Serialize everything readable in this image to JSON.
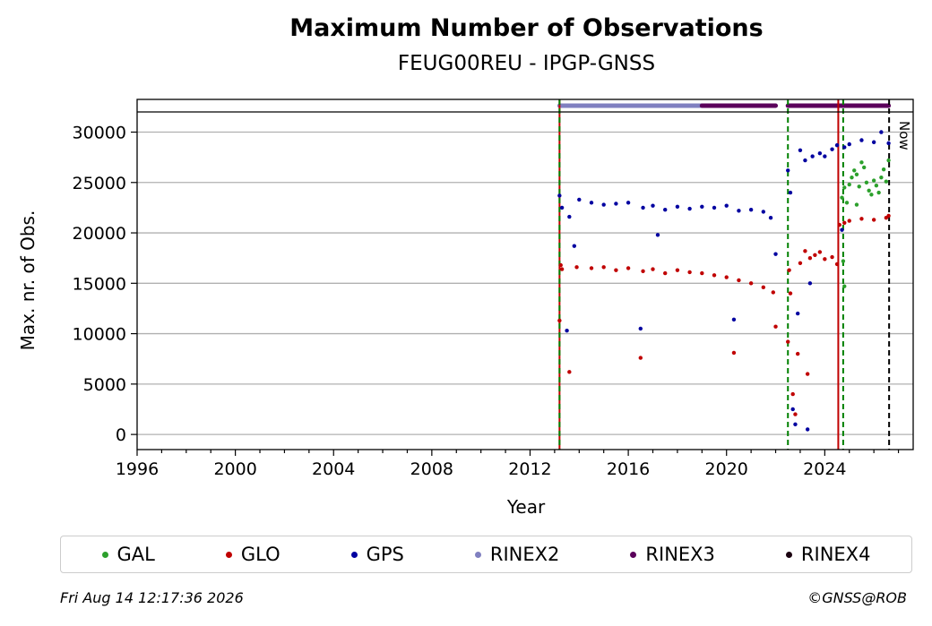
{
  "chart_data": {
    "type": "scatter",
    "title": "Maximum Number of Observations",
    "subtitle": "FEUG00REU - IPGP-GNSS",
    "xlabel": "Year",
    "ylabel": "Max. nr. of Obs.",
    "xlim": [
      1996,
      2027.6
    ],
    "ylim": [
      -1500,
      32000
    ],
    "x_ticks": [
      1996,
      2000,
      2004,
      2008,
      2012,
      2016,
      2020,
      2024
    ],
    "y_ticks": [
      0,
      5000,
      10000,
      15000,
      20000,
      25000,
      30000
    ],
    "grid": "horizontal",
    "series": [
      {
        "name": "GAL",
        "color": "#2ca02c",
        "points": [
          [
            2024.7,
            23500
          ],
          [
            2024.8,
            24500
          ],
          [
            2024.9,
            23000
          ],
          [
            2025.0,
            24800
          ],
          [
            2025.1,
            25500
          ],
          [
            2025.2,
            26200
          ],
          [
            2025.3,
            25800
          ],
          [
            2025.4,
            24600
          ],
          [
            2025.5,
            27000
          ],
          [
            2025.6,
            26500
          ],
          [
            2025.7,
            25000
          ],
          [
            2025.8,
            24200
          ],
          [
            2025.9,
            23800
          ],
          [
            2026.0,
            25200
          ],
          [
            2026.1,
            24700
          ],
          [
            2026.2,
            24000
          ],
          [
            2026.3,
            25500
          ],
          [
            2026.4,
            26300
          ],
          [
            2026.5,
            25100
          ],
          [
            2026.6,
            27200
          ],
          [
            2024.75,
            17200
          ],
          [
            2024.8,
            14700
          ],
          [
            2025.3,
            22800
          ]
        ]
      },
      {
        "name": "GLO",
        "color": "#c00000",
        "points": [
          [
            2013.2,
            11300
          ],
          [
            2013.25,
            16800
          ],
          [
            2013.3,
            16400
          ],
          [
            2013.6,
            6200
          ],
          [
            2013.9,
            16600
          ],
          [
            2014.5,
            16500
          ],
          [
            2015.0,
            16600
          ],
          [
            2015.5,
            16300
          ],
          [
            2016.0,
            16500
          ],
          [
            2016.5,
            7600
          ],
          [
            2016.6,
            16200
          ],
          [
            2017.0,
            16400
          ],
          [
            2017.5,
            16000
          ],
          [
            2018.0,
            16300
          ],
          [
            2018.5,
            16100
          ],
          [
            2019.0,
            16000
          ],
          [
            2019.5,
            15800
          ],
          [
            2020.0,
            15600
          ],
          [
            2020.3,
            8100
          ],
          [
            2020.5,
            15300
          ],
          [
            2021.0,
            15000
          ],
          [
            2021.5,
            14600
          ],
          [
            2021.9,
            14100
          ],
          [
            2022.0,
            10700
          ],
          [
            2022.5,
            9200
          ],
          [
            2022.55,
            16300
          ],
          [
            2022.6,
            14000
          ],
          [
            2022.7,
            4000
          ],
          [
            2022.8,
            2000
          ],
          [
            2022.9,
            8000
          ],
          [
            2023.0,
            17000
          ],
          [
            2023.2,
            18200
          ],
          [
            2023.3,
            6000
          ],
          [
            2023.4,
            17500
          ],
          [
            2023.6,
            17800
          ],
          [
            2023.8,
            18100
          ],
          [
            2024.0,
            17400
          ],
          [
            2024.3,
            17600
          ],
          [
            2024.5,
            16900
          ],
          [
            2024.6,
            20800
          ],
          [
            2024.8,
            21000
          ],
          [
            2025.0,
            21200
          ],
          [
            2025.5,
            21400
          ],
          [
            2026.0,
            21300
          ],
          [
            2026.5,
            21500
          ],
          [
            2026.6,
            21700
          ]
        ]
      },
      {
        "name": "GPS",
        "color": "#0000a0",
        "points": [
          [
            2013.2,
            23700
          ],
          [
            2013.3,
            22500
          ],
          [
            2013.5,
            10300
          ],
          [
            2013.6,
            21600
          ],
          [
            2013.8,
            18700
          ],
          [
            2014.0,
            23300
          ],
          [
            2014.5,
            23000
          ],
          [
            2015.0,
            22800
          ],
          [
            2015.5,
            22900
          ],
          [
            2016.0,
            23000
          ],
          [
            2016.5,
            10500
          ],
          [
            2016.6,
            22500
          ],
          [
            2017.0,
            22700
          ],
          [
            2017.2,
            19800
          ],
          [
            2017.5,
            22300
          ],
          [
            2018.0,
            22600
          ],
          [
            2018.5,
            22400
          ],
          [
            2019.0,
            22600
          ],
          [
            2019.5,
            22500
          ],
          [
            2020.0,
            22700
          ],
          [
            2020.3,
            11400
          ],
          [
            2020.5,
            22200
          ],
          [
            2021.0,
            22300
          ],
          [
            2021.5,
            22100
          ],
          [
            2021.8,
            21500
          ],
          [
            2022.0,
            17900
          ],
          [
            2022.5,
            26200
          ],
          [
            2022.6,
            24000
          ],
          [
            2022.7,
            2500
          ],
          [
            2022.8,
            1000
          ],
          [
            2022.9,
            12000
          ],
          [
            2023.0,
            28200
          ],
          [
            2023.2,
            27200
          ],
          [
            2023.3,
            500
          ],
          [
            2023.4,
            15000
          ],
          [
            2023.5,
            27600
          ],
          [
            2023.8,
            27900
          ],
          [
            2024.0,
            27600
          ],
          [
            2024.3,
            28300
          ],
          [
            2024.5,
            28700
          ],
          [
            2024.7,
            20300
          ],
          [
            2024.8,
            28500
          ],
          [
            2025.0,
            28800
          ],
          [
            2025.5,
            29200
          ],
          [
            2026.0,
            29000
          ],
          [
            2026.3,
            30000
          ],
          [
            2026.6,
            28900
          ]
        ]
      }
    ],
    "rinex_bars": [
      {
        "name": "RINEX2",
        "color": "#8080c0",
        "from": 2013.2,
        "to": 2019.0
      },
      {
        "name": "RINEX3",
        "color": "#5b005b",
        "from": 2019.0,
        "to": 2022.0
      },
      {
        "name": "RINEX3",
        "color": "#5b005b",
        "from": 2022.5,
        "to": 2026.6
      }
    ],
    "vertical_lines": [
      {
        "x": 2013.2,
        "style": "solid",
        "color": "#c00000"
      },
      {
        "x": 2013.2,
        "style": "dashed",
        "color": "#008000"
      },
      {
        "x": 2022.5,
        "style": "dashed",
        "color": "#008000"
      },
      {
        "x": 2024.55,
        "style": "solid",
        "color": "#c00000"
      },
      {
        "x": 2024.75,
        "style": "dashed",
        "color": "#008000"
      },
      {
        "x": 2026.62,
        "style": "dashed",
        "color": "#000000"
      }
    ],
    "now_label": "Now"
  },
  "legend": [
    {
      "label": "GAL",
      "color": "#2ca02c"
    },
    {
      "label": "GLO",
      "color": "#c00000"
    },
    {
      "label": "GPS",
      "color": "#0000a0"
    },
    {
      "label": "RINEX2",
      "color": "#8080c0"
    },
    {
      "label": "RINEX3",
      "color": "#5b005b"
    },
    {
      "label": "RINEX4",
      "color": "#1a0010"
    }
  ],
  "footer": {
    "timestamp": "Fri Aug 14 12:17:36 2026",
    "credit": "©GNSS@ROB"
  }
}
